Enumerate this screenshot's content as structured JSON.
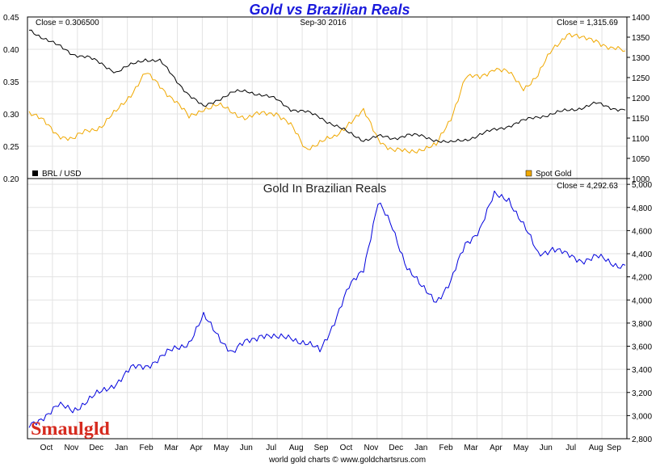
{
  "chart_data": {
    "type": "line",
    "title": "Gold vs Brazilian Reals",
    "date_label": "Sep-30  2016",
    "footer": "world gold charts © www.goldchartsrus.com",
    "logo_text": "Smaulgld",
    "x_ticks": [
      "Oct",
      "Nov",
      "Dec",
      "Jan",
      "Feb",
      "Mar",
      "Apr",
      "May",
      "Jun",
      "Jul",
      "Aug",
      "Sep",
      "Oct",
      "Nov",
      "Dec",
      "Jan",
      "Feb",
      "Mar",
      "Apr",
      "May",
      "Jun",
      "Jul",
      "Aug",
      "Sep"
    ],
    "colors": {
      "brl": "#000000",
      "gold": "#f0a800",
      "gold_brl": "#0000dd"
    },
    "top_panel": {
      "left_close": "Close = 0.306500",
      "right_close": "Close = 1,315.69",
      "left_legend": "BRL / USD",
      "right_legend": "Spot Gold",
      "left_axis": {
        "min": 0.2,
        "max": 0.45,
        "ticks": [
          "0.45",
          "0.40",
          "0.35",
          "0.30",
          "0.25",
          "0.20"
        ]
      },
      "right_axis": {
        "min": 1000,
        "max": 1400,
        "ticks": [
          "1400",
          "1350",
          "1300",
          "1250",
          "1200",
          "1150",
          "1100",
          "1050",
          "1000"
        ]
      },
      "series": [
        {
          "name": "BRL / USD",
          "axis": "left",
          "color": "#000000",
          "values": [
            0.43,
            0.418,
            0.405,
            0.393,
            0.388,
            0.377,
            0.365,
            0.375,
            0.385,
            0.382,
            0.355,
            0.33,
            0.31,
            0.323,
            0.333,
            0.335,
            0.33,
            0.322,
            0.308,
            0.303,
            0.295,
            0.283,
            0.27,
            0.26,
            0.265,
            0.262,
            0.268,
            0.265,
            0.26,
            0.255,
            0.26,
            0.268,
            0.275,
            0.282,
            0.289,
            0.296,
            0.3,
            0.305,
            0.31,
            0.316,
            0.31,
            0.306
          ]
        },
        {
          "name": "Spot Gold",
          "axis": "right",
          "color": "#f0a800",
          "values": [
            1165,
            1140,
            1110,
            1095,
            1120,
            1130,
            1165,
            1210,
            1260,
            1230,
            1195,
            1150,
            1175,
            1180,
            1165,
            1150,
            1160,
            1165,
            1130,
            1075,
            1090,
            1100,
            1140,
            1165,
            1100,
            1070,
            1065,
            1075,
            1080,
            1150,
            1250,
            1250,
            1275,
            1260,
            1225,
            1255,
            1320,
            1360,
            1345,
            1345,
            1320,
            1316
          ]
        }
      ]
    },
    "bottom_panel": {
      "panel_title": "Gold In Brazilian Reals",
      "right_close": "Close = 4,292.63",
      "right_axis": {
        "min": 2800,
        "max": 5050,
        "ticks": [
          "5,000",
          "4,800",
          "4,600",
          "4,400",
          "4,200",
          "4,000",
          "3,800",
          "3,600",
          "3,400",
          "3,200",
          "3,000",
          "2,800"
        ]
      },
      "series": [
        {
          "name": "Gold In Brazilian Reals",
          "color": "#0000dd",
          "values": [
            2900,
            3000,
            3080,
            3050,
            3130,
            3200,
            3290,
            3400,
            3430,
            3500,
            3570,
            3640,
            3850,
            3700,
            3540,
            3640,
            3710,
            3660,
            3690,
            3620,
            3560,
            3820,
            4100,
            4280,
            4840,
            4620,
            4290,
            4100,
            4000,
            4150,
            4480,
            4620,
            4900,
            4880,
            4640,
            4400,
            4450,
            4380,
            4350,
            4370,
            4320,
            4300
          ]
        }
      ]
    }
  }
}
